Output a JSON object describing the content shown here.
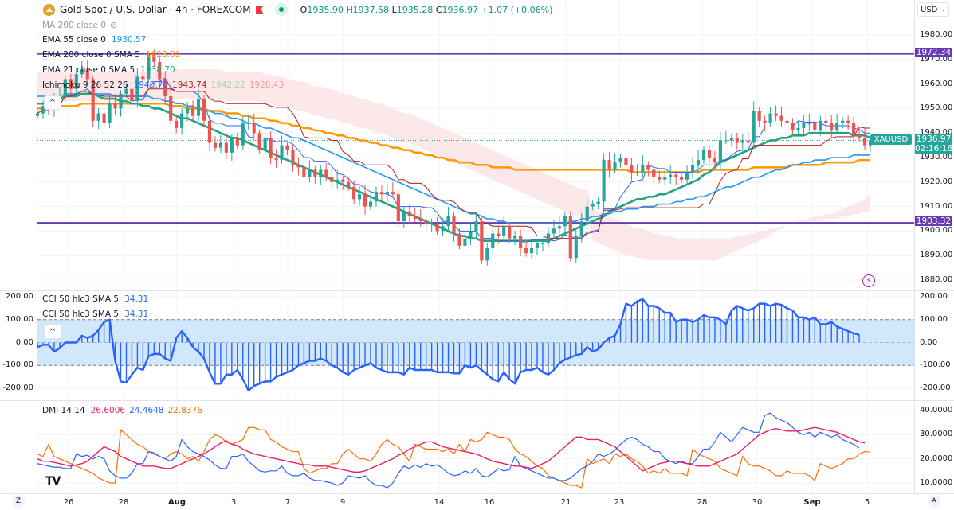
{
  "header": {
    "symbol_title": "Gold Spot / U.S. Dollar · 4h · FOREXCOM",
    "ohlc": {
      "o_label": "O",
      "o": "1935.90",
      "h_label": "H",
      "h": "1937.58",
      "l_label": "L",
      "l": "1935.28",
      "c_label": "C",
      "c": "1936.97",
      "change": "+1.07 (+0.06%)"
    },
    "currency": "USD"
  },
  "indicators": {
    "ma200": {
      "label": "MA 200 close 0"
    },
    "ema55": {
      "label": "EMA 55 close 0",
      "value": "1930.57"
    },
    "ema200": {
      "label": "EMA 200 close 0 SMA 5",
      "value": "1928.89"
    },
    "ema21": {
      "label": "EMA 21 close 0 SMA 5",
      "value": "1938.70"
    },
    "ichimoku": {
      "label": "Ichimoku 9 26 52 26",
      "v1": "1940.70",
      "v2": "1943.74",
      "v3": "1942.22",
      "v4": "1928.43"
    },
    "cci": {
      "label": "CCI 50 hlc3 SMA 5",
      "value": "34.31"
    },
    "cci2": {
      "label": "CCI 50 hlc3 SMA 5",
      "value": "34.31"
    },
    "dmi": {
      "label": "DMI 14 14",
      "plus": "26.6006",
      "minus": "24.4648",
      "adx": "22.8376"
    }
  },
  "colors": {
    "up": "#26a69a",
    "down": "#ef5350",
    "ema55": "#2196f3",
    "ema200": "#ff9800",
    "ema21": "#22a47f",
    "tenkan": "#2962ff",
    "kijun": "#b71c1c",
    "level": "#673ab7",
    "cci": "#2962ff",
    "dmi_plus": "#e91e63",
    "dmi_minus": "#2962ff",
    "adx": "#ff6d00"
  },
  "price_axis": {
    "ticks": [
      "1980.00",
      "1970.00",
      "1960.00",
      "1950.00",
      "1940.00",
      "1930.00",
      "1920.00",
      "1910.00",
      "1900.00",
      "1890.00",
      "1880.00"
    ],
    "level_high": "1972.34",
    "level_low": "1903.32",
    "last_price": "1936.97",
    "countdown": "02:16:16",
    "symbol_tag": "XAUUSD"
  },
  "cci_axis": {
    "ticks": [
      "200.00",
      "100.00",
      "0.00",
      "-100.00",
      "-200.00"
    ]
  },
  "dmi_axis": {
    "ticks": [
      "40.0000",
      "30.0000",
      "20.0000",
      "10.0000"
    ]
  },
  "time_axis": {
    "ticks": [
      {
        "label": "26",
        "bold": false
      },
      {
        "label": "28",
        "bold": false
      },
      {
        "label": "Aug",
        "bold": true
      },
      {
        "label": "3",
        "bold": false
      },
      {
        "label": "7",
        "bold": false
      },
      {
        "label": "9",
        "bold": false
      },
      {
        "label": "14",
        "bold": false
      },
      {
        "label": "16",
        "bold": false
      },
      {
        "label": "21",
        "bold": false
      },
      {
        "label": "23",
        "bold": false
      },
      {
        "label": "28",
        "bold": false
      },
      {
        "label": "30",
        "bold": false
      },
      {
        "label": "Sep",
        "bold": true
      },
      {
        "label": "5",
        "bold": false
      }
    ],
    "left_button": "Z",
    "right_button": "A"
  },
  "chart_data": {
    "type": "candlestick",
    "title": "Gold Spot / U.S. Dollar · 4h · FOREXCOM",
    "ylim_price": [
      1875,
      1985
    ],
    "ylim_cci": [
      -250,
      250
    ],
    "ylim_dmi": [
      5,
      42
    ],
    "closes": [
      1948,
      1951,
      1950,
      1953,
      1955,
      1962,
      1958,
      1964,
      1966,
      1962,
      1945,
      1948,
      1944,
      1952,
      1950,
      1956,
      1958,
      1953,
      1963,
      1962,
      1972,
      1969,
      1962,
      1955,
      1945,
      1942,
      1948,
      1950,
      1947,
      1954,
      1945,
      1936,
      1934,
      1936,
      1932,
      1938,
      1935,
      1944,
      1944,
      1940,
      1933,
      1938,
      1930,
      1929,
      1935,
      1933,
      1927,
      1926,
      1922,
      1925,
      1922,
      1925,
      1922,
      1920,
      1921,
      1920,
      1918,
      1913,
      1915,
      1910,
      1912,
      1916,
      1915,
      1916,
      1915,
      1904,
      1908,
      1906,
      1905,
      1904,
      1903,
      1903,
      1900,
      1902,
      1906,
      1899,
      1894,
      1897,
      1900,
      1904,
      1888,
      1893,
      1899,
      1898,
      1902,
      1897,
      1898,
      1893,
      1891,
      1893,
      1895,
      1895,
      1899,
      1901,
      1902,
      1906,
      1889,
      1898,
      1904,
      1910,
      1911,
      1912,
      1929,
      1925,
      1928,
      1930,
      1927,
      1924,
      1924,
      1927,
      1925,
      1922,
      1921,
      1922,
      1923,
      1922,
      1921,
      1924,
      1927,
      1929,
      1933,
      1930,
      1928,
      1937,
      1937,
      1938,
      1936,
      1937,
      1936,
      1949,
      1945,
      1944,
      1948,
      1947,
      1945,
      1944,
      1941,
      1942,
      1944,
      1944,
      1941,
      1945,
      1944,
      1941,
      1944,
      1945,
      1944,
      1939,
      1938,
      1935,
      1937
    ],
    "ema21": [
      1952,
      1952,
      1953,
      1953,
      1954,
      1955,
      1955,
      1955,
      1956,
      1956,
      1956,
      1955,
      1954,
      1954,
      1954,
      1953,
      1953,
      1952,
      1952,
      1951,
      1951,
      1950,
      1950,
      1949,
      1948,
      1947,
      1946,
      1946,
      1945,
      1944,
      1943,
      1942,
      1941,
      1940,
      1939,
      1938,
      1938,
      1937,
      1936,
      1935,
      1934,
      1933,
      1932,
      1931,
      1930,
      1929,
      1928,
      1927,
      1926,
      1925,
      1924,
      1923,
      1922,
      1921,
      1920,
      1919,
      1918,
      1917,
      1916,
      1915,
      1914,
      1913,
      1912,
      1911,
      1910,
      1909,
      1908,
      1907,
      1906,
      1905,
      1904,
      1903,
      1902,
      1901,
      1900,
      1899,
      1898,
      1898,
      1897,
      1897,
      1896,
      1896,
      1896,
      1896,
      1896,
      1896,
      1896,
      1896,
      1896,
      1896,
      1896,
      1896,
      1896,
      1897,
      1898,
      1899,
      1900,
      1901,
      1902,
      1903,
      1904,
      1905,
      1906,
      1908,
      1909,
      1910,
      1911,
      1912,
      1913,
      1913,
      1914,
      1914,
      1915,
      1915,
      1916,
      1917,
      1918,
      1919,
      1920,
      1921,
      1923,
      1924,
      1926,
      1928,
      1929,
      1930,
      1931,
      1932,
      1933,
      1934,
      1935,
      1936,
      1937,
      1937,
      1938,
      1938,
      1939,
      1939,
      1939,
      1940,
      1940,
      1940,
      1940,
      1940,
      1940,
      1940,
      1940,
      1939,
      1939,
      1939,
      1938
    ],
    "ema55": [
      1955,
      1955,
      1955,
      1955,
      1955,
      1956,
      1956,
      1956,
      1956,
      1956,
      1956,
      1956,
      1956,
      1956,
      1955,
      1955,
      1955,
      1955,
      1955,
      1955,
      1955,
      1954,
      1954,
      1953,
      1953,
      1952,
      1952,
      1951,
      1951,
      1950,
      1949,
      1949,
      1948,
      1948,
      1947,
      1946,
      1946,
      1945,
      1944,
      1944,
      1943,
      1942,
      1942,
      1941,
      1940,
      1939,
      1938,
      1938,
      1937,
      1936,
      1935,
      1934,
      1933,
      1932,
      1931,
      1930,
      1929,
      1928,
      1927,
      1926,
      1925,
      1924,
      1923,
      1922,
      1921,
      1920,
      1919,
      1918,
      1917,
      1916,
      1915,
      1914,
      1913,
      1912,
      1911,
      1910,
      1909,
      1908,
      1907,
      1907,
      1906,
      1905,
      1905,
      1904,
      1904,
      1903,
      1903,
      1903,
      1903,
      1903,
      1903,
      1903,
      1903,
      1903,
      1903,
      1903,
      1904,
      1904,
      1905,
      1905,
      1906,
      1906,
      1907,
      1907,
      1908,
      1908,
      1909,
      1909,
      1909,
      1910,
      1910,
      1910,
      1911,
      1911,
      1911,
      1912,
      1912,
      1913,
      1913,
      1914,
      1914,
      1915,
      1916,
      1917,
      1918,
      1918,
      1919,
      1920,
      1921,
      1922,
      1922,
      1923,
      1924,
      1925,
      1925,
      1926,
      1927,
      1927,
      1928,
      1928,
      1929,
      1929,
      1929,
      1930,
      1930,
      1930,
      1930,
      1931,
      1931,
      1931,
      1931
    ],
    "ema200": [
      1950,
      1950,
      1951,
      1951,
      1951,
      1951,
      1951,
      1951,
      1952,
      1952,
      1952,
      1952,
      1952,
      1952,
      1952,
      1952,
      1952,
      1952,
      1952,
      1952,
      1952,
      1952,
      1952,
      1952,
      1951,
      1951,
      1951,
      1950,
      1950,
      1950,
      1950,
      1949,
      1949,
      1949,
      1948,
      1948,
      1948,
      1947,
      1947,
      1946,
      1946,
      1946,
      1945,
      1945,
      1944,
      1944,
      1943,
      1943,
      1942,
      1942,
      1941,
      1941,
      1940,
      1940,
      1939,
      1939,
      1938,
      1938,
      1937,
      1937,
      1936,
      1936,
      1935,
      1935,
      1934,
      1934,
      1933,
      1933,
      1932,
      1932,
      1931,
      1931,
      1930,
      1930,
      1929,
      1929,
      1928,
      1928,
      1928,
      1927,
      1927,
      1927,
      1926,
      1926,
      1926,
      1926,
      1925,
      1925,
      1925,
      1925,
      1925,
      1925,
      1925,
      1925,
      1925,
      1925,
      1925,
      1925,
      1925,
      1925,
      1925,
      1925,
      1925,
      1925,
      1925,
      1925,
      1925,
      1924,
      1924,
      1924,
      1924,
      1924,
      1924,
      1924,
      1924,
      1924,
      1924,
      1924,
      1924,
      1924,
      1925,
      1925,
      1925,
      1925,
      1925,
      1925,
      1925,
      1925,
      1925,
      1926,
      1926,
      1926,
      1926,
      1926,
      1926,
      1926,
      1927,
      1927,
      1927,
      1927,
      1927,
      1927,
      1928,
      1928,
      1928,
      1928,
      1928,
      1928,
      1929,
      1929,
      1929
    ],
    "cci": [
      -20,
      -10,
      -10,
      -40,
      -25,
      0,
      0,
      0,
      30,
      20,
      30,
      55,
      90,
      100,
      -80,
      -170,
      -175,
      -140,
      -110,
      -120,
      -60,
      -50,
      -50,
      -70,
      -80,
      20,
      50,
      20,
      -20,
      -40,
      -70,
      -130,
      -180,
      -180,
      -140,
      -140,
      -120,
      -160,
      -210,
      -190,
      -180,
      -170,
      -170,
      -150,
      -140,
      -130,
      -120,
      -100,
      -90,
      -80,
      -80,
      -70,
      -80,
      -100,
      -110,
      -130,
      -140,
      -120,
      -110,
      -100,
      -90,
      -110,
      -120,
      -130,
      -130,
      -130,
      -140,
      -110,
      -120,
      -120,
      -120,
      -120,
      -130,
      -130,
      -130,
      -135,
      -135,
      -100,
      -110,
      -100,
      -120,
      -140,
      -160,
      -170,
      -130,
      -160,
      -180,
      -130,
      -120,
      -120,
      -110,
      -130,
      -140,
      -120,
      -90,
      -75,
      -65,
      -55,
      -50,
      -20,
      -40,
      -30,
      0,
      20,
      30,
      80,
      170,
      160,
      180,
      190,
      160,
      160,
      150,
      130,
      130,
      90,
      100,
      100,
      90,
      100,
      120,
      110,
      110,
      100,
      80,
      140,
      160,
      150,
      140,
      150,
      170,
      170,
      160,
      170,
      165,
      150,
      140,
      110,
      110,
      100,
      110,
      80,
      80,
      90,
      70,
      60,
      50,
      40,
      34
    ],
    "dmi_plus": [
      20,
      19,
      19,
      18.5,
      18,
      17.5,
      17,
      17.5,
      18,
      19,
      21,
      23,
      25,
      24,
      23,
      21,
      20,
      19,
      18,
      17,
      17,
      17,
      16.5,
      16,
      16,
      17,
      18,
      19,
      20,
      21,
      22,
      23.5,
      25,
      26.5,
      27.5,
      26,
      25.5,
      24,
      23,
      22,
      21.5,
      21,
      20.5,
      20,
      19.5,
      19,
      18.5,
      18,
      17.5,
      17.5,
      17,
      17,
      17,
      16.5,
      16,
      15.5,
      15,
      14.5,
      14.5,
      15,
      16,
      17,
      18,
      19,
      20,
      21.5,
      22.5,
      24,
      25,
      26,
      27,
      27,
      26,
      25,
      24.5,
      24,
      23.5,
      23,
      22.5,
      22,
      21,
      20,
      19,
      18.5,
      18,
      17.5,
      17,
      17,
      16.5,
      16,
      17,
      18,
      19,
      21,
      23,
      25,
      27,
      29,
      29,
      28,
      28,
      28,
      27,
      26,
      25,
      23,
      21,
      19,
      17,
      15,
      16,
      17,
      18,
      18.5,
      19,
      19,
      18.5,
      18,
      17.5,
      17,
      17,
      17,
      18,
      19,
      20,
      21,
      22,
      24,
      26,
      28,
      30,
      31,
      32,
      32.5,
      32,
      31.5,
      31.5,
      31.5,
      32,
      32.5,
      33,
      32.5,
      32,
      31.5,
      31,
      30,
      29,
      28,
      27,
      26.6
    ],
    "dmi_minus": [
      18,
      17.5,
      17,
      16.5,
      16.5,
      16,
      16,
      22,
      21,
      21.5,
      20,
      21,
      20,
      15,
      13,
      12,
      12,
      14,
      18,
      18,
      23,
      22.5,
      21,
      20,
      19,
      21,
      28,
      25,
      23,
      22,
      21,
      19.5,
      17.5,
      16,
      16,
      21,
      21,
      22,
      19,
      17,
      15,
      14.5,
      15,
      15,
      17,
      14,
      13,
      13,
      14,
      12,
      11,
      11,
      10.5,
      10,
      9,
      10,
      13,
      12.5,
      12,
      13,
      10.5,
      9,
      9,
      8,
      10,
      14,
      17,
      16,
      17.5,
      16.5,
      18,
      17,
      17.5,
      16,
      14,
      13,
      13.5,
      15,
      14,
      16,
      13,
      12.5,
      14,
      16,
      15,
      15.5,
      21,
      17,
      16,
      15,
      14,
      13,
      12,
      12,
      11,
      11,
      12,
      14,
      16,
      17,
      19,
      22,
      21,
      22,
      23.5,
      26,
      28,
      29,
      28,
      26,
      25,
      23,
      23,
      20,
      19,
      18,
      19,
      18,
      18,
      21,
      24,
      24,
      27,
      31,
      29,
      27,
      30,
      33,
      32,
      31,
      31,
      38,
      39,
      37,
      36,
      35,
      33,
      31,
      30,
      31,
      29,
      31,
      30,
      29,
      30,
      28,
      27,
      26,
      24.5
    ],
    "adx": [
      22,
      21,
      26,
      21,
      20,
      19,
      18,
      17,
      16,
      15,
      14,
      12,
      11,
      10,
      10,
      32,
      30,
      28,
      26,
      25,
      23,
      22,
      21,
      20,
      22,
      23,
      22,
      20,
      21,
      19,
      23,
      28,
      30,
      29,
      27,
      26,
      27,
      28,
      33,
      33,
      32,
      32,
      28,
      27,
      25,
      24,
      23,
      23,
      16,
      14,
      15,
      16,
      16,
      18,
      18,
      22,
      24,
      22,
      20,
      20,
      19,
      22,
      26,
      28,
      26,
      25,
      22,
      19,
      26,
      25,
      24,
      24,
      24,
      23,
      24,
      22,
      26,
      23,
      28,
      27,
      28,
      31,
      30,
      29,
      29,
      28,
      24,
      22,
      21,
      19,
      17,
      16,
      13,
      12,
      11,
      10,
      9,
      9,
      8,
      20,
      18,
      19,
      20,
      18,
      22,
      21,
      22,
      20,
      19,
      17,
      14,
      15,
      14,
      16,
      14,
      14,
      14,
      13,
      24,
      22,
      21,
      20,
      19,
      16,
      15,
      14,
      13,
      21,
      18,
      17,
      17,
      16,
      15,
      13,
      13,
      15,
      14,
      14,
      14,
      13,
      11,
      18,
      17,
      16,
      17,
      18,
      20,
      20,
      22,
      23,
      22.8
    ]
  }
}
